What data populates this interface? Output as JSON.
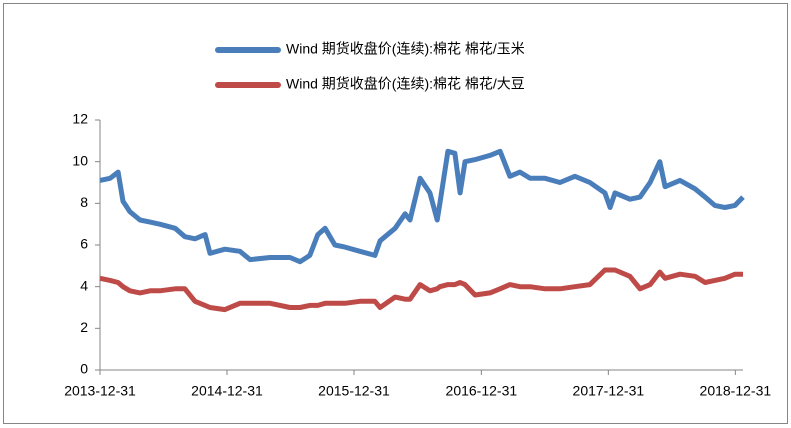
{
  "chart_data": {
    "type": "line",
    "x": [
      "2013-12-31",
      "2014-01-29",
      "2014-02-21",
      "2014-03-07",
      "2014-03-27",
      "2014-04-25",
      "2014-05-24",
      "2014-06-21",
      "2014-08-04",
      "2014-09-01",
      "2014-09-30",
      "2014-10-29",
      "2014-11-12",
      "2014-12-25",
      "2015-02-06",
      "2015-03-07",
      "2015-05-04",
      "2015-06-30",
      "2015-07-29",
      "2015-08-26",
      "2015-09-18",
      "2015-10-09",
      "2015-11-06",
      "2015-12-05",
      "2016-01-17",
      "2016-02-29",
      "2016-03-15",
      "2016-04-27",
      "2016-05-26",
      "2016-06-09",
      "2016-07-08",
      "2016-08-05",
      "2016-08-26",
      "2016-09-03",
      "2016-09-26",
      "2016-10-16",
      "2016-10-31",
      "2016-11-14",
      "2016-12-13",
      "2017-01-25",
      "2017-02-23",
      "2017-03-23",
      "2017-04-21",
      "2017-05-20",
      "2017-07-02",
      "2017-08-14",
      "2017-09-26",
      "2017-11-08",
      "2017-12-21",
      "2018-01-05",
      "2018-01-19",
      "2018-03-03",
      "2018-04-01",
      "2018-04-30",
      "2018-05-28",
      "2018-06-12",
      "2018-07-25",
      "2018-09-06",
      "2018-10-05",
      "2018-11-02",
      "2018-12-01",
      "2018-12-30",
      "2019-01-22"
    ],
    "series": [
      {
        "name": "Wind 期货收盘价(连续):棉花 棉花/玉米",
        "color": "#4a7ebb",
        "values": [
          9.1,
          9.2,
          9.5,
          8.1,
          7.6,
          7.2,
          7.1,
          7.0,
          6.8,
          6.4,
          6.3,
          6.5,
          5.6,
          5.8,
          5.7,
          5.3,
          5.4,
          5.4,
          5.2,
          5.5,
          6.5,
          6.8,
          6.0,
          5.9,
          5.7,
          5.5,
          6.2,
          6.8,
          7.5,
          7.2,
          9.2,
          8.5,
          7.2,
          8.0,
          10.5,
          10.4,
          8.5,
          10.0,
          10.1,
          10.3,
          10.5,
          9.3,
          9.5,
          9.2,
          9.2,
          9.0,
          9.3,
          9.0,
          8.5,
          7.8,
          8.5,
          8.2,
          8.3,
          9.0,
          10.0,
          8.8,
          9.1,
          8.7,
          8.3,
          7.9,
          7.8,
          7.9,
          8.3
        ]
      },
      {
        "name": "Wind 期货收盘价(连续):棉花 棉花/大豆",
        "color": "#be4b48",
        "values": [
          4.4,
          4.3,
          4.2,
          4.0,
          3.8,
          3.7,
          3.8,
          3.8,
          3.9,
          3.9,
          3.3,
          3.1,
          3.0,
          2.9,
          3.2,
          3.2,
          3.2,
          3.0,
          3.0,
          3.1,
          3.1,
          3.2,
          3.2,
          3.2,
          3.3,
          3.3,
          3.0,
          3.5,
          3.4,
          3.4,
          4.1,
          3.8,
          3.9,
          4.0,
          4.1,
          4.1,
          4.2,
          4.1,
          3.6,
          3.7,
          3.9,
          4.1,
          4.0,
          4.0,
          3.9,
          3.9,
          4.0,
          4.1,
          4.8,
          4.8,
          4.8,
          4.5,
          3.9,
          4.1,
          4.7,
          4.4,
          4.6,
          4.5,
          4.2,
          4.3,
          4.4,
          4.6,
          4.6
        ]
      }
    ],
    "xlim": [
      "2013-12-31",
      "2019-01-22"
    ],
    "xticks": [
      "2013-12-31",
      "2014-12-31",
      "2015-12-31",
      "2016-12-31",
      "2017-12-31",
      "2018-12-31"
    ],
    "ylim": [
      0,
      12
    ],
    "yticks": [
      0,
      2,
      4,
      6,
      8,
      10,
      12
    ],
    "grid": false,
    "legend": "top"
  }
}
